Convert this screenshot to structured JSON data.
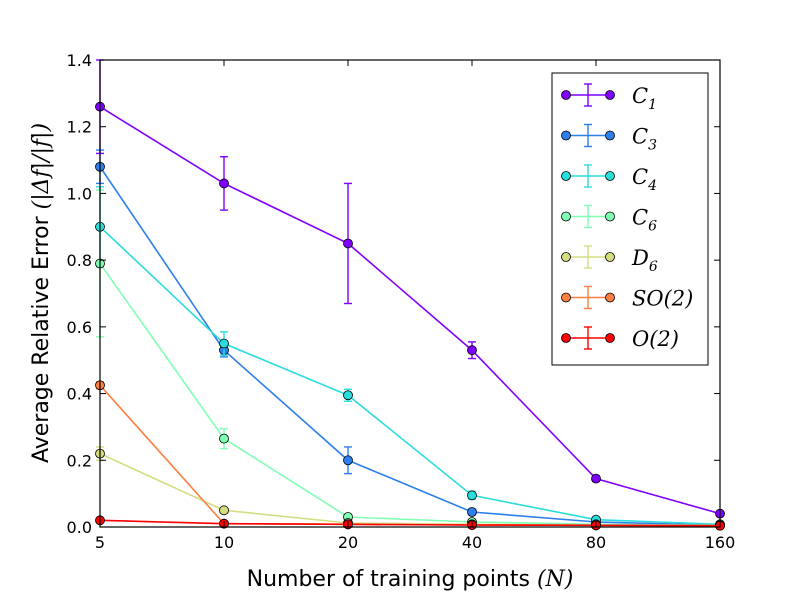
{
  "chart_data": {
    "type": "line",
    "xlabel": "Number of training points",
    "xlabel_math": "(N)",
    "ylabel": "Average Relative Error",
    "ylabel_math": "(|Δf|/|f|)",
    "x": [
      5,
      10,
      20,
      40,
      80,
      160
    ],
    "x_tick_labels": [
      "5",
      "10",
      "20",
      "40",
      "80",
      "160"
    ],
    "ylim": [
      0.0,
      1.4
    ],
    "y_ticks": [
      0.0,
      0.2,
      0.4,
      0.6,
      0.8,
      1.0,
      1.2,
      1.4
    ],
    "y_tick_labels": [
      "0.0",
      "0.2",
      "0.4",
      "0.6",
      "0.8",
      "1.0",
      "1.2",
      "1.4"
    ],
    "legend_position": "top-right",
    "series": [
      {
        "name": "C1",
        "label_main": "C",
        "label_sub": "1",
        "label_tail": "",
        "color": "#8000ff",
        "values": [
          1.26,
          1.03,
          0.85,
          0.53,
          0.145,
          0.04
        ],
        "errors": [
          0.14,
          0.08,
          0.18,
          0.025,
          0.008,
          0.005
        ]
      },
      {
        "name": "C3",
        "label_main": "C",
        "label_sub": "3",
        "label_tail": "",
        "color": "#2c7fec",
        "values": [
          1.08,
          0.53,
          0.2,
          0.045,
          0.015,
          0.005
        ],
        "errors": [
          0.05,
          0.02,
          0.04,
          0.008,
          0.004,
          0.002
        ]
      },
      {
        "name": "C4",
        "label_main": "C",
        "label_sub": "4",
        "label_tail": "",
        "color": "#2adddd",
        "values": [
          0.9,
          0.55,
          0.395,
          0.095,
          0.022,
          0.008
        ],
        "errors": [
          0.12,
          0.035,
          0.018,
          0.012,
          0.004,
          0.002
        ]
      },
      {
        "name": "C6",
        "label_main": "C",
        "label_sub": "6",
        "label_tail": "",
        "color": "#80ffb4",
        "values": [
          0.79,
          0.265,
          0.03,
          0.015,
          0.008,
          0.005
        ],
        "errors": [
          0.22,
          0.03,
          0.006,
          0.004,
          0.003,
          0.002
        ]
      },
      {
        "name": "D6",
        "label_main": "D",
        "label_sub": "6",
        "label_tail": "",
        "color": "#d4dd80",
        "values": [
          0.22,
          0.05,
          0.012,
          0.008,
          0.005,
          0.004
        ],
        "errors": [
          0.02,
          0.008,
          0.004,
          0.003,
          0.002,
          0.002
        ]
      },
      {
        "name": "SO(2)",
        "label_main": "SO",
        "label_sub": "",
        "label_tail": "(2)",
        "color": "#ff7f40",
        "values": [
          0.425,
          0.01,
          0.008,
          0.006,
          0.005,
          0.004
        ],
        "errors": [
          0.01,
          0.004,
          0.003,
          0.002,
          0.002,
          0.002
        ]
      },
      {
        "name": "O(2)",
        "label_main": "O",
        "label_sub": "",
        "label_tail": "(2)",
        "color": "#ff0000",
        "values": [
          0.02,
          0.01,
          0.008,
          0.006,
          0.005,
          0.004
        ],
        "errors": [
          0.005,
          0.003,
          0.003,
          0.002,
          0.002,
          0.002
        ]
      }
    ]
  }
}
